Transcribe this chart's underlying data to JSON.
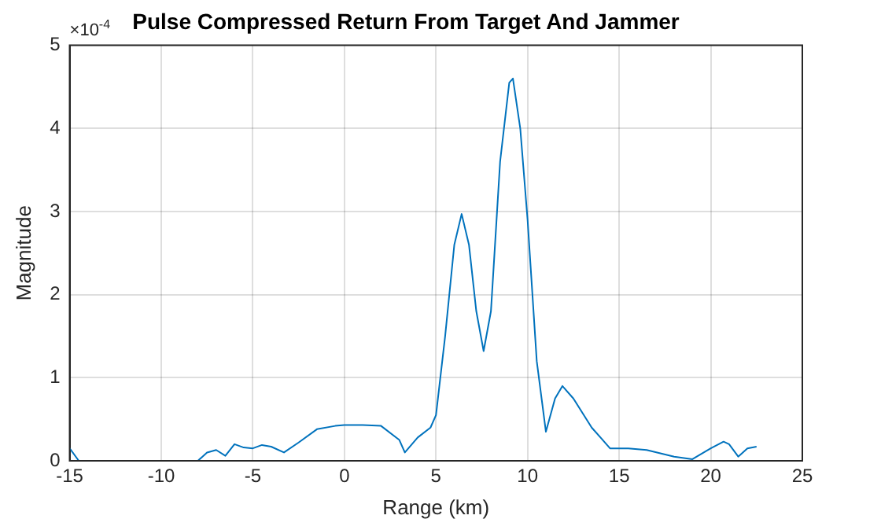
{
  "chart_data": {
    "type": "line",
    "title": "Pulse Compressed Return From Target And Jammer",
    "xlabel": "Range (km)",
    "ylabel": "Magnitude",
    "annotations": [
      "×10$^{-4}$"
    ],
    "x": [
      -15,
      -14.5,
      -8,
      -7.5,
      -7,
      -6.5,
      -6,
      -5.5,
      -5,
      -4.5,
      -4,
      -3.3,
      -2.5,
      -1.5,
      -0.5,
      0,
      1,
      2,
      3,
      3.3,
      4,
      4.7,
      5,
      5.5,
      6,
      6.4,
      6.8,
      7.2,
      7.6,
      8,
      8.5,
      9,
      9.2,
      9.6,
      10,
      10.5,
      11,
      11.5,
      11.9,
      12.5,
      13.5,
      14.5,
      15.5,
      16.5,
      18,
      19,
      20,
      20.7,
      21,
      21.5,
      22,
      22.5
    ],
    "series": [
      {
        "color": "#0072bd",
        "values": [
          0.15,
          0,
          0,
          0.1,
          0.13,
          0.06,
          0.2,
          0.16,
          0.15,
          0.19,
          0.17,
          0.1,
          0.22,
          0.38,
          0.42,
          0.43,
          0.43,
          0.42,
          0.25,
          0.1,
          0.28,
          0.4,
          0.55,
          1.5,
          2.6,
          2.97,
          2.6,
          1.8,
          1.32,
          1.8,
          3.6,
          4.55,
          4.6,
          4.0,
          2.9,
          1.2,
          0.35,
          0.75,
          0.9,
          0.75,
          0.4,
          0.15,
          0.15,
          0.13,
          0.05,
          0.02,
          0.15,
          0.23,
          0.2,
          0.05,
          0.15,
          0.17
        ]
      }
    ],
    "xlim": [
      -15,
      25
    ],
    "xticks": [
      -15,
      -10,
      -5,
      0,
      5,
      10,
      15,
      20,
      25
    ],
    "ylim": [
      0,
      5
    ],
    "yticks": [
      0,
      1,
      2,
      3,
      4,
      5
    ],
    "grid": true,
    "legend": false,
    "marker": "none",
    "line_style": "solid"
  }
}
